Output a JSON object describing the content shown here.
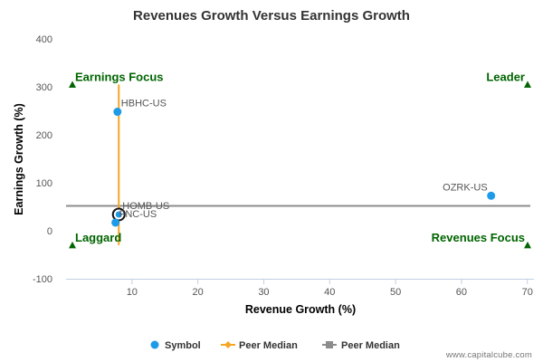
{
  "chart_data": {
    "type": "scatter",
    "title": "Revenues Growth Versus Earnings Growth",
    "xlabel": "Revenue Growth (%)",
    "ylabel": "Earnings Growth (%)",
    "xlim": [
      0,
      71
    ],
    "ylim": [
      -100,
      400
    ],
    "x_ticks": [
      10,
      20,
      30,
      40,
      50,
      60,
      70
    ],
    "y_ticks": [
      -100,
      0,
      100,
      200,
      300,
      400
    ],
    "grid": false,
    "points": [
      {
        "label": "HBHC-US",
        "x": 7.8,
        "y": 248,
        "highlight": false
      },
      {
        "label": "OZRK-US",
        "x": 64.5,
        "y": 73,
        "highlight": false
      },
      {
        "label": "HOMB-US",
        "x": 8.0,
        "y": 34,
        "highlight": true
      },
      {
        "label": "FNC-US",
        "x": 7.5,
        "y": 17,
        "highlight": false
      }
    ],
    "peer_median_x": 8.0,
    "peer_median_y_range": [
      -30,
      305
    ],
    "peer_median_y": 52,
    "quadrants": [
      {
        "label": "Earnings Focus",
        "corner": "top-left",
        "y": 305
      },
      {
        "label": "Leader",
        "corner": "top-right",
        "y": 305
      },
      {
        "label": "Laggard",
        "corner": "bottom-left",
        "y": -30
      },
      {
        "label": "Revenues Focus",
        "corner": "bottom-right",
        "y": -30
      }
    ],
    "legend": [
      {
        "label": "Symbol",
        "marker": "circle"
      },
      {
        "label": "Peer Median",
        "marker": "diamond-line"
      },
      {
        "label": "Peer Median",
        "marker": "square-line"
      }
    ],
    "legend_position": "bottom",
    "colors": {
      "point": "#1e9be8",
      "highlight_ring": "#111111",
      "peer_median_x": "#f5a623",
      "peer_median_y": "#8c8c8c",
      "quadrant": "#006400",
      "axis": "#c0d0e0"
    }
  },
  "credit": "www.capitalcube.com"
}
